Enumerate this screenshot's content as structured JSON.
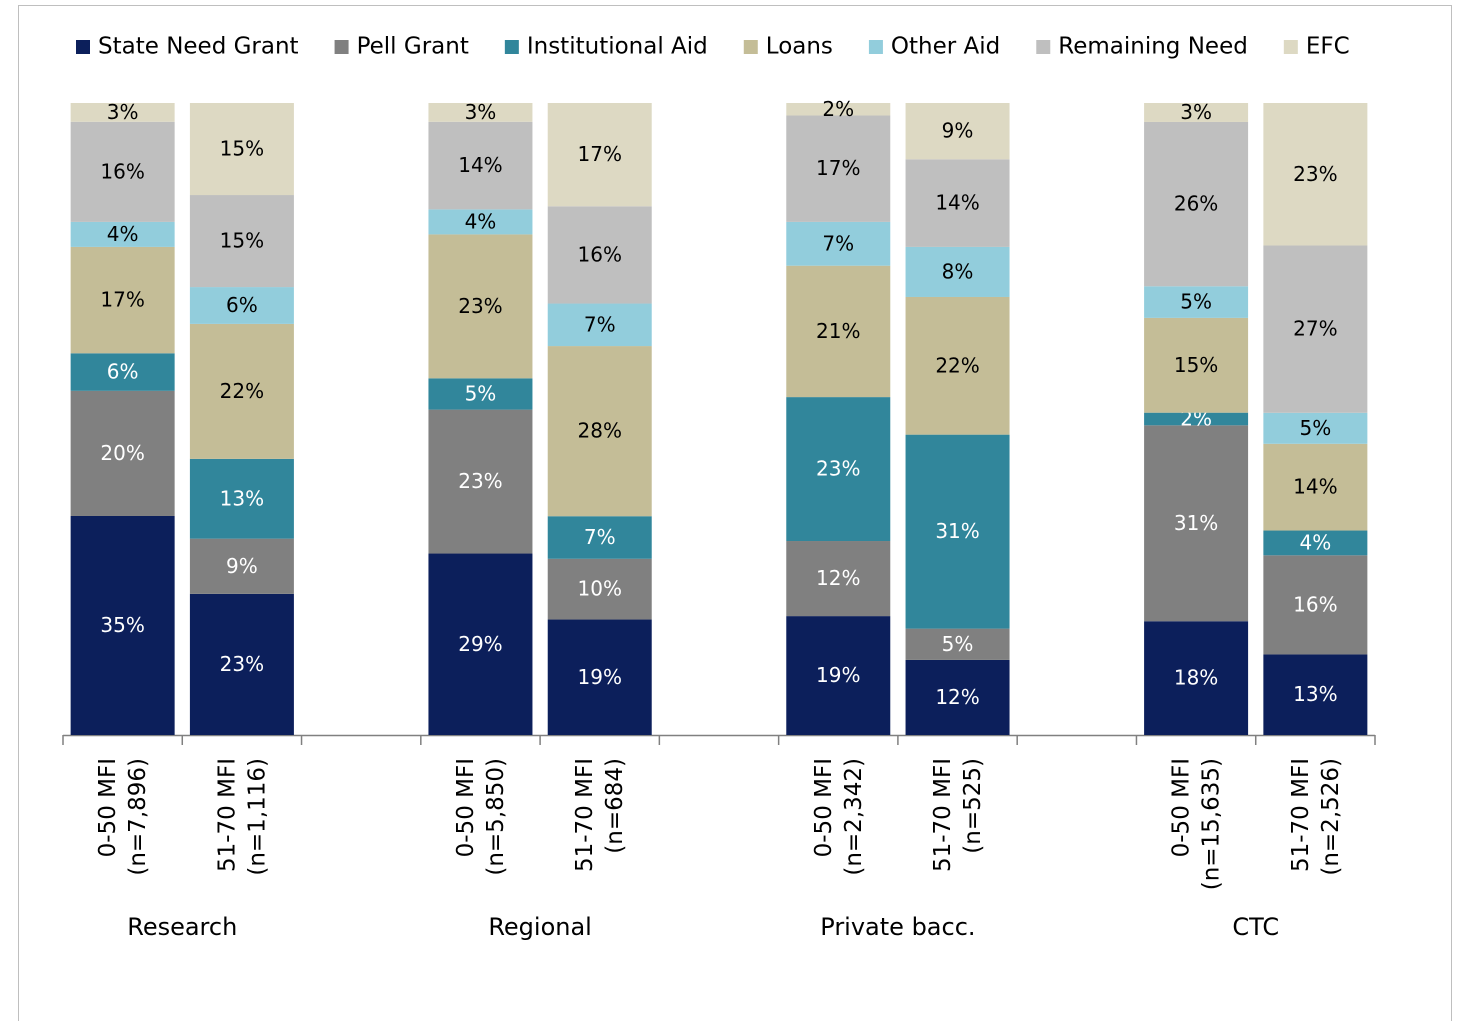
{
  "chart_data": {
    "type": "bar",
    "stack": "percent",
    "groups": [
      "Research",
      "Regional",
      "Private bacc.",
      "CTC"
    ],
    "categories": [
      [
        "0-50 MFI",
        "(n=7,896)"
      ],
      [
        "51-70 MFI",
        "(n=1,116)"
      ],
      [
        "0-50 MFI",
        "(n=5,850)"
      ],
      [
        "51-70 MFI",
        "(n=684)"
      ],
      [
        "0-50 MFI",
        "(n=2,342)"
      ],
      [
        "51-70 MFI",
        "(n=525)"
      ],
      [
        "0-50 MFI",
        "(n=15,635)"
      ],
      [
        "51-70 MFI",
        "(n=2,526)"
      ]
    ],
    "ylim": [
      0,
      100
    ],
    "series": [
      {
        "name": "State Need Grant",
        "color": "#0c1f5b",
        "label_color": "#ffffff",
        "values": [
          35,
          23,
          29,
          19,
          19,
          12,
          18,
          13
        ],
        "value_labels": [
          "35%",
          "23%",
          "29%",
          "19%",
          "19%",
          "12%",
          "18%",
          "13%"
        ]
      },
      {
        "name": "Pell Grant",
        "color": "#808080",
        "label_color": "#ffffff",
        "values": [
          20,
          9,
          23,
          10,
          12,
          5,
          31,
          16
        ],
        "value_labels": [
          "20%",
          "9%",
          "23%",
          "10%",
          "12%",
          "5%",
          "31%",
          "16%"
        ]
      },
      {
        "name": "Institutional Aid",
        "color": "#31869b",
        "label_color": "#ffffff",
        "values": [
          6,
          13,
          5,
          7,
          23,
          31,
          2,
          4
        ],
        "value_labels": [
          "6%",
          "13%",
          "5%",
          "7%",
          "23%",
          "31%",
          "2%",
          "4%"
        ]
      },
      {
        "name": "Loans",
        "color": "#c4bd97",
        "label_color": "#000000",
        "values": [
          17,
          22,
          23,
          28,
          21,
          22,
          15,
          14
        ],
        "value_labels": [
          "17%",
          "22%",
          "23%",
          "28%",
          "21%",
          "22%",
          "15%",
          "14%"
        ]
      },
      {
        "name": "Other Aid",
        "color": "#92cddc",
        "label_color": "#000000",
        "values": [
          4,
          6,
          4,
          7,
          7,
          8,
          5,
          5
        ],
        "value_labels": [
          "4%",
          "6%",
          "4%",
          "7%",
          "7%",
          "8%",
          "5%",
          "5%"
        ]
      },
      {
        "name": "Remaining Need",
        "color": "#bfbfbf",
        "label_color": "#000000",
        "values": [
          16,
          15,
          14,
          16,
          17,
          14,
          26,
          27
        ],
        "value_labels": [
          "16%",
          "15%",
          "14%",
          "16%",
          "17%",
          "14%",
          "26%",
          "27%"
        ]
      },
      {
        "name": "EFC",
        "color": "#ddd9c3",
        "label_color": "#000000",
        "values": [
          3,
          15,
          3,
          17,
          2,
          9,
          3,
          23
        ],
        "value_labels": [
          "3%",
          "15%",
          "3%",
          "17%",
          "2%",
          "9%",
          "3%",
          "23%"
        ]
      }
    ]
  }
}
